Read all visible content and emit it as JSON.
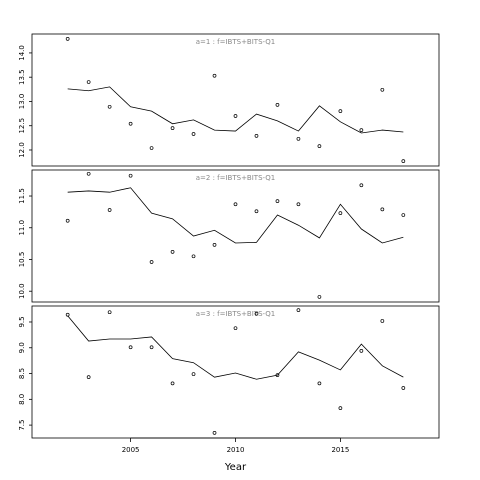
{
  "chart_data": [
    {
      "type": "line",
      "title": "a=1 : f=IBTS+BITS-Q1",
      "x": [
        2002,
        2003,
        2004,
        2005,
        2006,
        2007,
        2008,
        2009,
        2010,
        2011,
        2012,
        2013,
        2014,
        2015,
        2016,
        2017,
        2018
      ],
      "xlim": [
        2000.3,
        2019.7
      ],
      "ylim": [
        11.67,
        14.39
      ],
      "yticks": [
        {
          "value": 12,
          "label": "12.0"
        },
        {
          "value": 12.5,
          "label": "12.5"
        },
        {
          "value": 13,
          "label": "13.0"
        },
        {
          "value": 13.5,
          "label": "13.5"
        },
        {
          "value": 14,
          "label": "14.0"
        }
      ],
      "series": [
        {
          "style": "line",
          "color": "#000000",
          "values": [
            13.26,
            13.22,
            13.3,
            12.89,
            12.8,
            12.54,
            12.62,
            12.41,
            12.39,
            12.74,
            12.6,
            12.39,
            12.91,
            12.58,
            12.35,
            12.41,
            12.37
          ]
        },
        {
          "style": "points",
          "color": "#000000",
          "values": [
            14.29,
            13.4,
            12.89,
            12.54,
            12.04,
            12.45,
            12.33,
            13.53,
            12.7,
            12.29,
            12.93,
            12.23,
            12.08,
            12.8,
            12.41,
            13.24,
            11.77
          ]
        }
      ]
    },
    {
      "type": "line",
      "title": "a=2 : f=IBTS+BITS-Q1",
      "x": [
        2002,
        2003,
        2004,
        2005,
        2006,
        2007,
        2008,
        2009,
        2010,
        2011,
        2012,
        2013,
        2014,
        2015,
        2016,
        2017,
        2018
      ],
      "xlim": [
        2000.3,
        2019.7
      ],
      "ylim": [
        9.83,
        11.91
      ],
      "yticks": [
        {
          "value": 10,
          "label": "10.0"
        },
        {
          "value": 10.5,
          "label": "10.5"
        },
        {
          "value": 11,
          "label": "11.0"
        },
        {
          "value": 11.5,
          "label": "11.5"
        }
      ],
      "series": [
        {
          "style": "line",
          "color": "#000000",
          "values": [
            11.56,
            11.58,
            11.56,
            11.63,
            11.23,
            11.14,
            10.87,
            10.96,
            10.76,
            10.77,
            11.2,
            11.04,
            10.84,
            11.37,
            10.98,
            10.76,
            10.85
          ]
        },
        {
          "style": "points",
          "color": "#000000",
          "values": [
            11.11,
            11.85,
            11.28,
            11.82,
            10.46,
            10.62,
            10.55,
            10.73,
            11.37,
            11.26,
            11.42,
            11.37,
            9.91,
            11.23,
            11.67,
            11.29,
            11.2
          ]
        }
      ]
    },
    {
      "type": "line",
      "title": "a=3 : f=IBTS+BITS-Q1",
      "x": [
        2002,
        2003,
        2004,
        2005,
        2006,
        2007,
        2008,
        2009,
        2010,
        2011,
        2012,
        2013,
        2014,
        2015,
        2016,
        2017,
        2018
      ],
      "xlim": [
        2000.3,
        2019.7
      ],
      "ylim": [
        7.25,
        9.81
      ],
      "yticks": [
        7.5,
        {
          "value": 8,
          "label": "8.0"
        },
        8.5,
        {
          "value": 9,
          "label": "9.0"
        },
        9.5
      ],
      "xticks": [
        2005,
        2010,
        2015
      ],
      "xlabel": "Year",
      "series": [
        {
          "style": "line",
          "color": "#000000",
          "values": [
            9.62,
            9.13,
            9.17,
            9.17,
            9.21,
            8.79,
            8.71,
            8.43,
            8.51,
            8.39,
            8.47,
            8.92,
            8.76,
            8.57,
            9.07,
            8.65,
            8.43
          ]
        },
        {
          "style": "points",
          "color": "#000000",
          "values": [
            9.64,
            8.43,
            9.69,
            9.01,
            9.01,
            8.31,
            8.49,
            7.35,
            9.38,
            9.66,
            8.47,
            9.73,
            8.31,
            7.83,
            8.94,
            9.52,
            8.22
          ]
        }
      ]
    }
  ]
}
